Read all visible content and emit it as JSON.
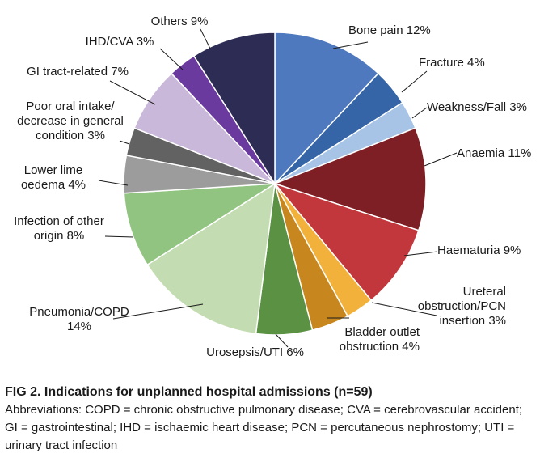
{
  "chart_data": {
    "type": "pie",
    "slices": [
      {
        "label": [
          "Bone pain 12%"
        ],
        "value": 12,
        "color": "#4f79bf"
      },
      {
        "label": [
          "Fracture 4%"
        ],
        "value": 4,
        "color": "#3565a6"
      },
      {
        "label": [
          "Weakness/Fall 3%"
        ],
        "value": 3,
        "color": "#a7c4e6"
      },
      {
        "label": [
          "Anaemia 11%"
        ],
        "value": 11,
        "color": "#7d1f24"
      },
      {
        "label": [
          "Haematuria 9%"
        ],
        "value": 9,
        "color": "#c2373c"
      },
      {
        "label": [
          "Ureteral",
          "obstruction/PCN",
          "insertion 3%"
        ],
        "value": 3,
        "color": "#f2b13a"
      },
      {
        "label": [
          "Bladder outlet",
          "obstruction 4%"
        ],
        "value": 4,
        "color": "#c7871e"
      },
      {
        "label": [
          "Urosepsis/UTI 6%"
        ],
        "value": 6,
        "color": "#5a9143"
      },
      {
        "label": [
          "Pneumonia/COPD",
          "14%"
        ],
        "value": 14,
        "color": "#c4dcb2"
      },
      {
        "label": [
          "Infection of other",
          "origin 8%"
        ],
        "value": 8,
        "color": "#92c481"
      },
      {
        "label": [
          "Lower lime",
          "oedema 4%"
        ],
        "value": 4,
        "color": "#9c9c9c"
      },
      {
        "label": [
          "Poor oral intake/",
          "decrease in general",
          "condition 3%"
        ],
        "value": 3,
        "color": "#626262"
      },
      {
        "label": [
          "GI tract-related 7%"
        ],
        "value": 7,
        "color": "#c9b8da"
      },
      {
        "label": [
          "IHD/CVA 3%"
        ],
        "value": 3,
        "color": "#6a3a9f"
      },
      {
        "label": [
          "Others 9%"
        ],
        "value": 9,
        "color": "#2d2c54"
      }
    ]
  },
  "caption": {
    "title": "FIG 2.  Indications for unplanned hospital admissions (n=59)",
    "abbreviations": "Abbreviations: COPD = chronic obstructive pulmonary disease; CVA = cerebrovascular accident; GI = gastrointestinal; IHD = ischaemic heart disease; PCN = percutaneous nephrostomy; UTI = urinary tract infection"
  }
}
